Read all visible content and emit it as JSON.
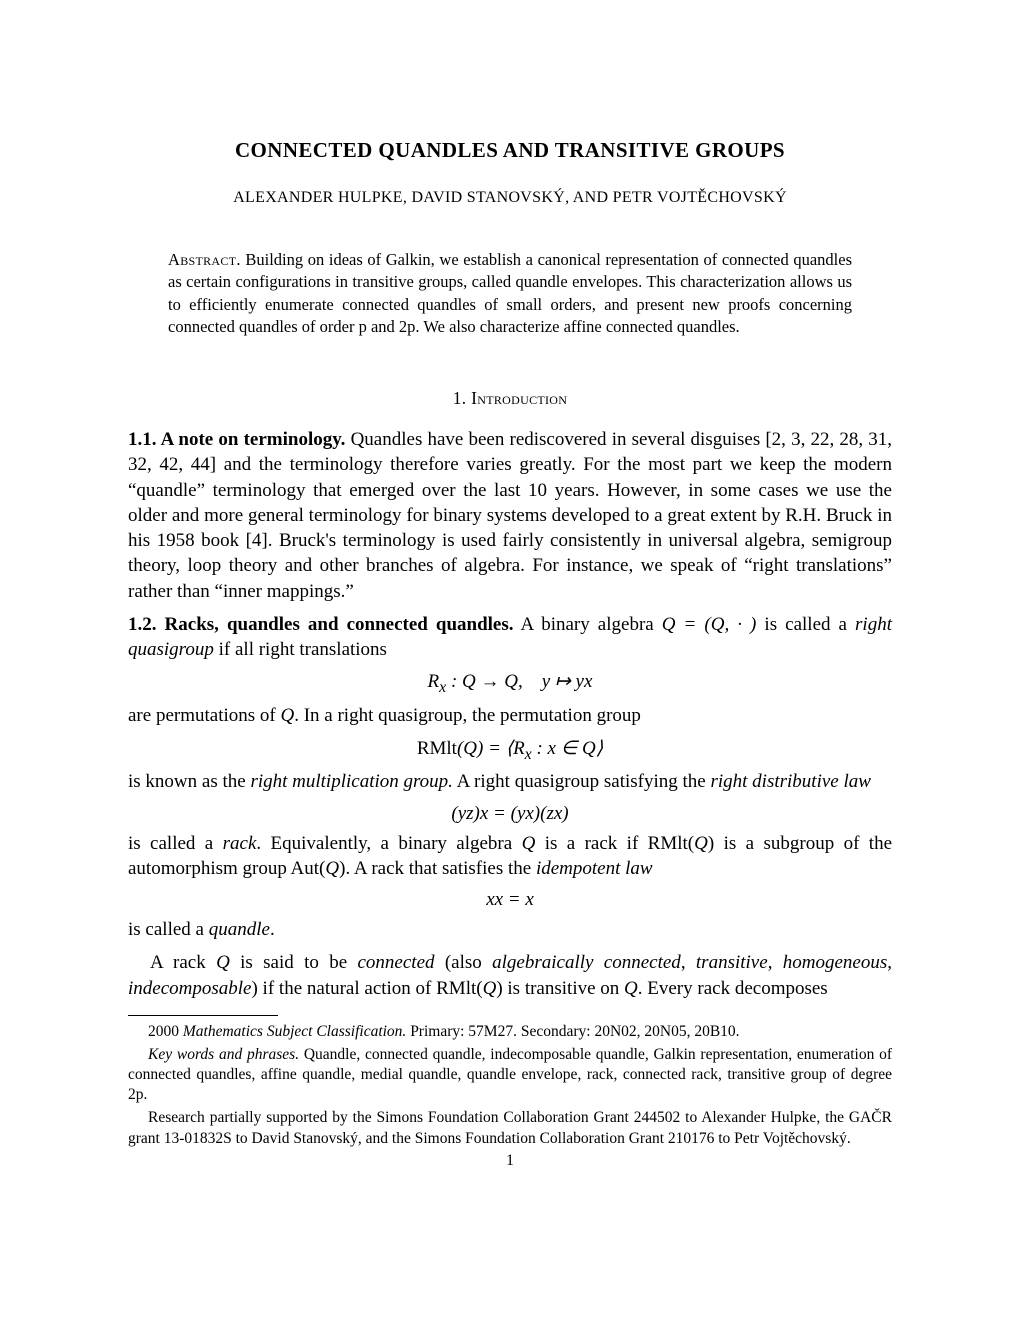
{
  "title": "CONNECTED QUANDLES AND TRANSITIVE GROUPS",
  "authors": "ALEXANDER HULPKE, DAVID STANOVSKÝ, AND PETR VOJTĚCHOVSKÝ",
  "abstract_label": "Abstract.",
  "abstract_text": " Building on ideas of Galkin, we establish a canonical representation of connected quandles as certain configurations in transitive groups, called quandle envelopes. This characterization allows us to efficiently enumerate connected quandles of small orders, and present new proofs concerning connected quandles of order p and 2p. We also characterize affine connected quandles.",
  "section_heading": "1. Introduction",
  "subsection_1_label": "1.1. A note on terminology.",
  "subsection_1_text": " Quandles have been rediscovered in several disguises [2, 3, 22, 28, 31, 32, 42, 44] and the terminology therefore varies greatly. For the most part we keep the modern “quandle” terminology that emerged over the last 10 years. However, in some cases we use the older and more general terminology for binary systems developed to a great extent by R.H. Bruck in his 1958 book [4]. Bruck's terminology is used fairly consistently in universal algebra, semigroup theory, loop theory and other branches of algebra. For instance, we speak of “right translations” rather than “inner mappings.”",
  "subsection_2_label": "1.2. Racks, quandles and connected quandles.",
  "subsection_2_text_1_a": " A binary algebra ",
  "subsection_2_text_1_b": "Q = (Q, · )",
  "subsection_2_text_1_c": " is called a ",
  "right_quasigroup": "right quasigroup",
  "subsection_2_text_1_d": " if all right translations",
  "math_1_a": "R",
  "math_1_sub": "x",
  "math_1_b": " : Q → Q, y ↦ yx",
  "para_2_a": "are permutations of ",
  "para_2_b": "Q",
  "para_2_c": ". In a right quasigroup, the permutation group",
  "math_2_a": "RMlt",
  "math_2_b": "(Q) = ⟨R",
  "math_2_sub": "x",
  "math_2_c": " : x ∈ Q⟩",
  "para_3_a": "is known as the ",
  "right_mult_group": "right multiplication group.",
  "para_3_b": " A right quasigroup satisfying the ",
  "right_dist_law": "right distributive law",
  "math_3": "(yz)x = (yx)(zx)",
  "para_4_a": "is called a ",
  "rack": "rack",
  "para_4_b": ". Equivalently, a binary algebra ",
  "para_4_c": "Q",
  "para_4_d": " is a rack if RMlt(",
  "para_4_e": "Q",
  "para_4_f": ") is a subgroup of the automorphism group Aut(",
  "para_4_g": "Q",
  "para_4_h": "). A rack that satisfies the ",
  "idempotent_law": "idempotent law",
  "math_4": "xx = x",
  "para_5_a": "is called a ",
  "quandle": "quandle",
  "para_5_b": ".",
  "para_6_a": "A rack ",
  "para_6_b": "Q",
  "para_6_c": " is said to be ",
  "connected": "connected",
  "para_6_d": " (also ",
  "alg_connected": "algebraically connected",
  "para_6_e": ", ",
  "transitive": "transitive",
  "para_6_f": ", ",
  "homogeneous": "homogeneous",
  "para_6_g": ", ",
  "indecomposable": "indecomposable",
  "para_6_h": ") if the natural action of RMlt(",
  "para_6_i": "Q",
  "para_6_j": ") is transitive on ",
  "para_6_k": "Q",
  "para_6_l": ". Every rack decomposes",
  "footnote_1_a": "2000 ",
  "footnote_1_b": "Mathematics Subject Classification.",
  "footnote_1_c": " Primary: 57M27. Secondary: 20N02, 20N05, 20B10.",
  "footnote_2_a": "Key words and phrases.",
  "footnote_2_b": " Quandle, connected quandle, indecomposable quandle, Galkin representation, enumeration of connected quandles, affine quandle, medial quandle, quandle envelope, rack, connected rack, transitive group of degree 2p.",
  "footnote_3": "Research partially supported by the Simons Foundation Collaboration Grant 244502 to Alexander Hulpke, the GAČR grant 13-01832S to David Stanovský, and the Simons Foundation Collaboration Grant 210176 to Petr Vojtěchovský.",
  "page_num": "1"
}
